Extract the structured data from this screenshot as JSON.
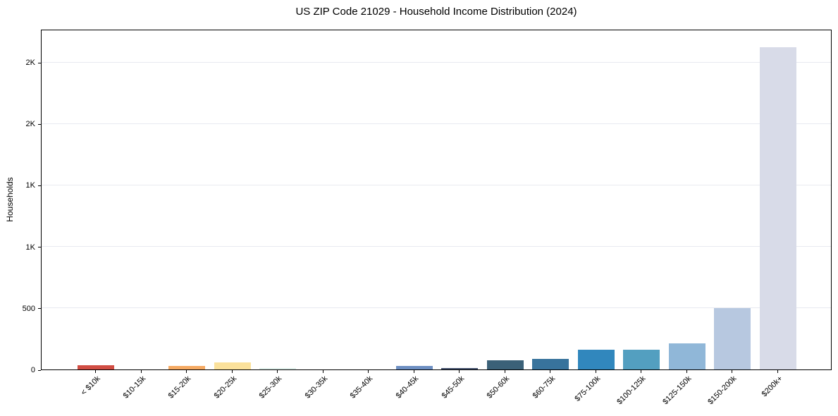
{
  "chart_data": {
    "type": "bar",
    "title": "US ZIP Code 21029 - Household Income Distribution (2024)",
    "xlabel": "",
    "ylabel": "Households",
    "categories": [
      "< $10k",
      "$10-15k",
      "$15-20k",
      "$20-25k",
      "$25-30k",
      "$30-35k",
      "$35-40k",
      "$40-45k",
      "$45-50k",
      "$50-60k",
      "$60-75k",
      "$75-100k",
      "$100-125k",
      "$125-150k",
      "$150-200k",
      "$200k+"
    ],
    "values": [
      35,
      0,
      28,
      55,
      10,
      0,
      0,
      29,
      14,
      72,
      88,
      160,
      162,
      215,
      500,
      2620
    ],
    "bar_colors": [
      "#d14d43",
      "#eb9c5f",
      "#f5aa63",
      "#fbe19b",
      "#dcede8",
      "#c3ddec",
      "#9ec7e2",
      "#6d8fc2",
      "#44516c",
      "#3b6178",
      "#38739c",
      "#3187bd",
      "#539fc0",
      "#90b7d8",
      "#b7c8e0",
      "#d8dbe8"
    ],
    "ylim": [
      0,
      2770
    ],
    "yticks": {
      "values": [
        0,
        500,
        1000,
        1500,
        2000,
        2500
      ],
      "labels": [
        "0",
        "500",
        "1K",
        "1K",
        "2K",
        "2K"
      ]
    },
    "grid": "horizontal",
    "grid_color": "#e8eaf0",
    "axis_color": "#000000",
    "background_color": "#ffffff",
    "legend": "none"
  }
}
